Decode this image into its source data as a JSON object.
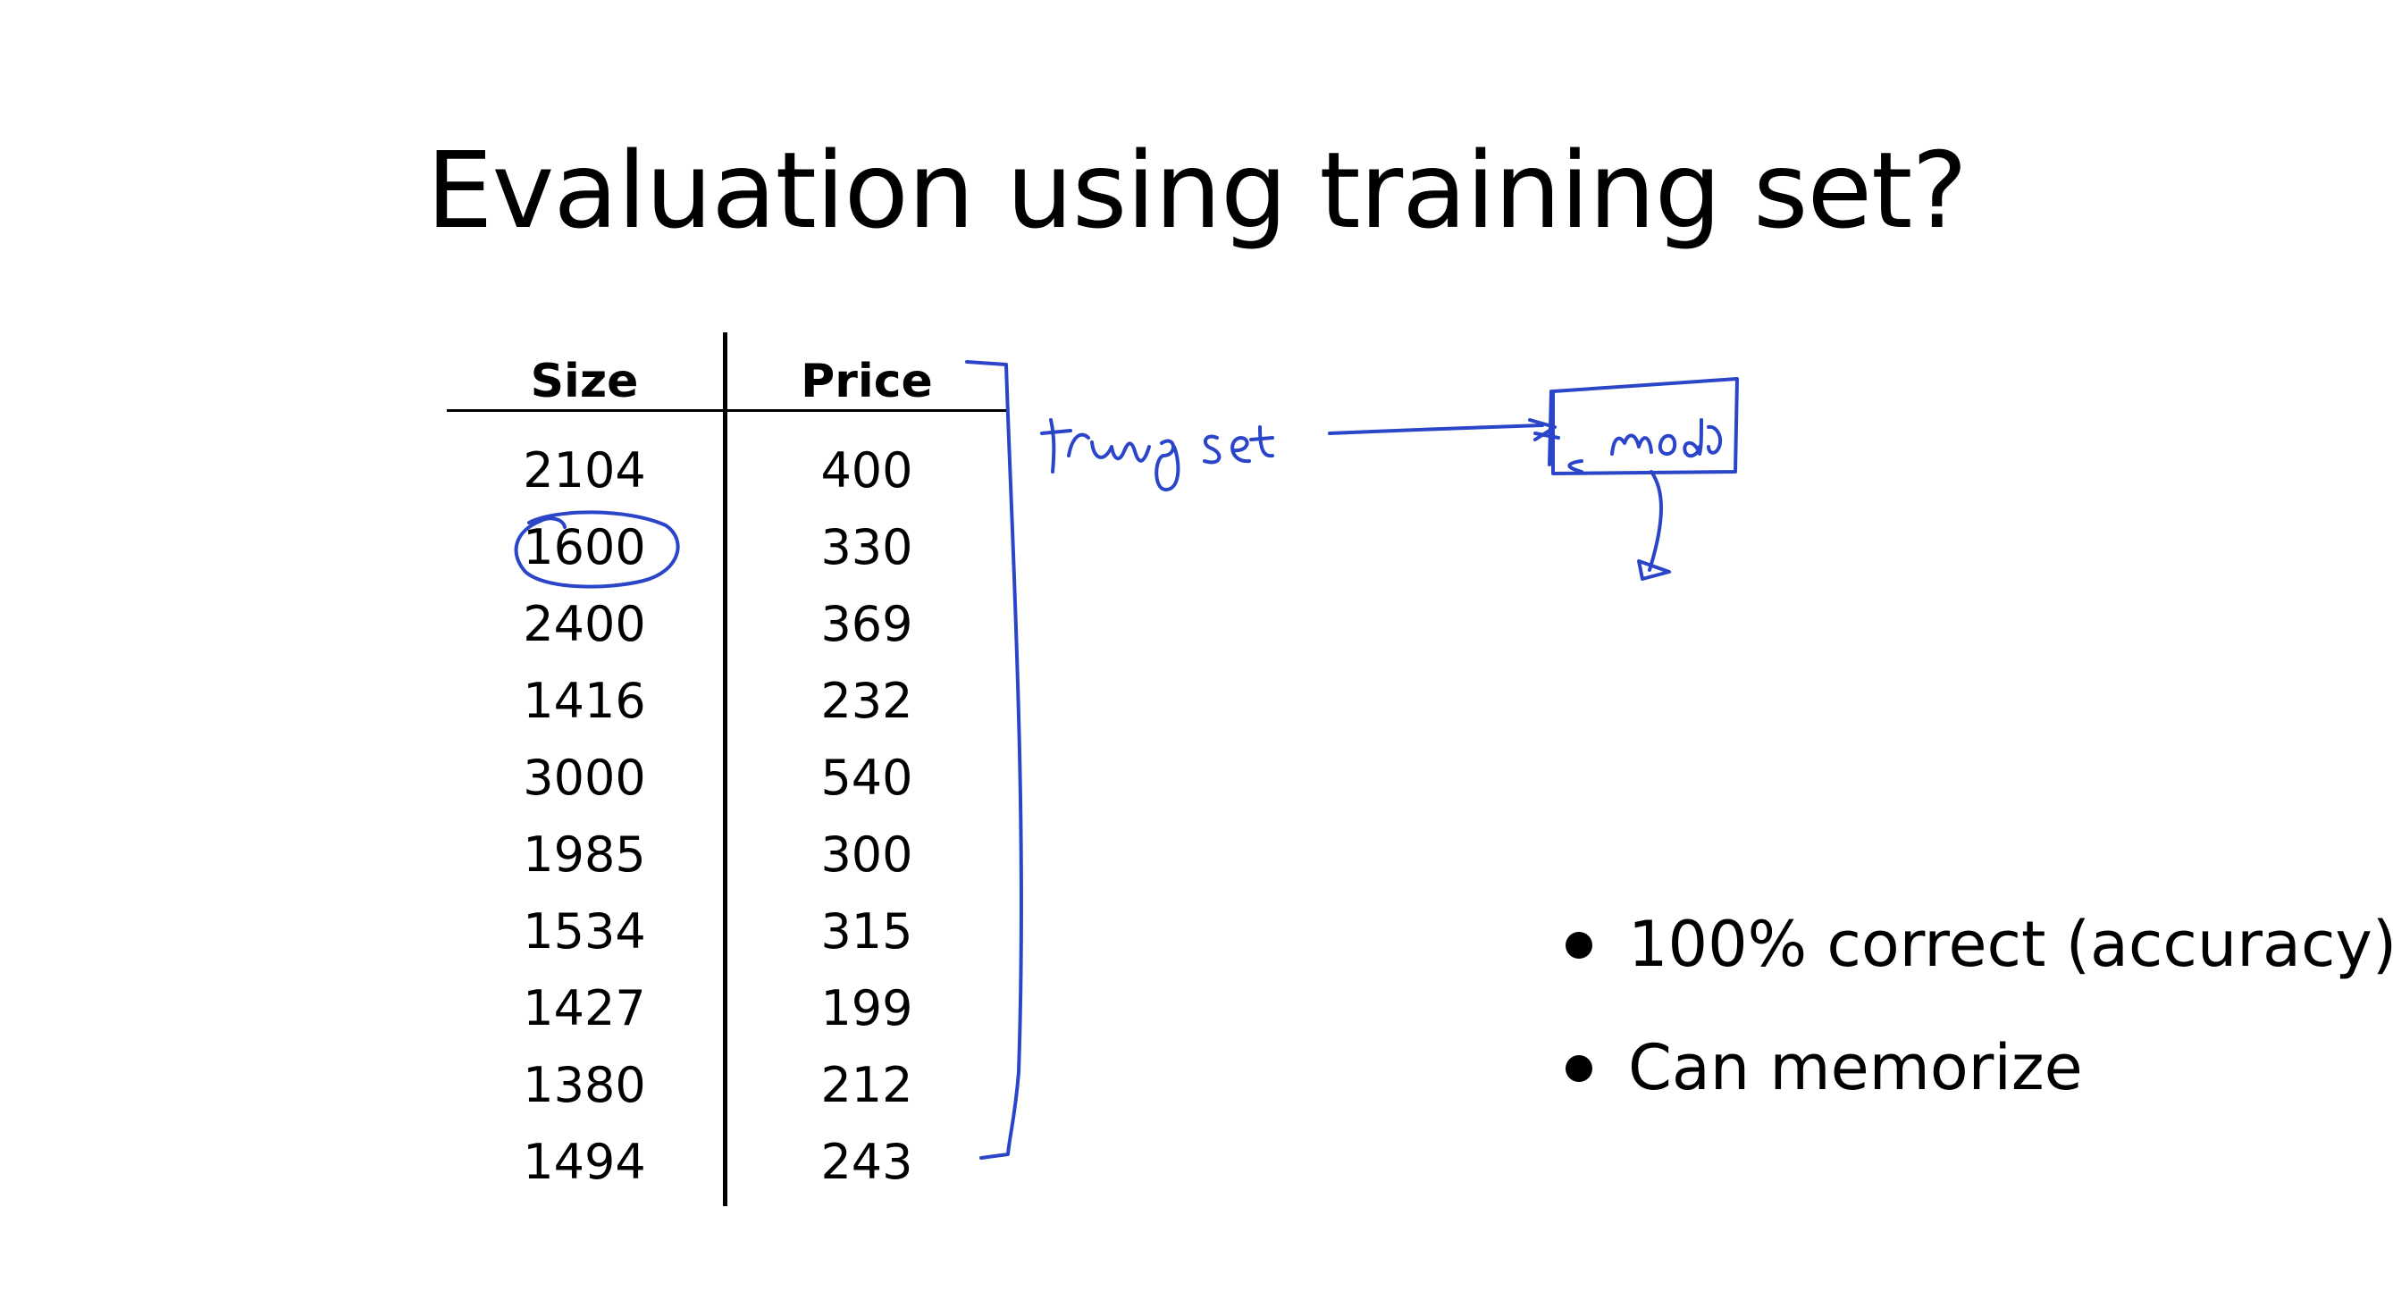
{
  "slide": {
    "title": "Evaluation using training set?",
    "table": {
      "headers": [
        "Size",
        "Price"
      ],
      "rows": [
        [
          "2104",
          "400"
        ],
        [
          "1600",
          "330"
        ],
        [
          "2400",
          "369"
        ],
        [
          "1416",
          "232"
        ],
        [
          "3000",
          "540"
        ],
        [
          "1985",
          "300"
        ],
        [
          "1534",
          "315"
        ],
        [
          "1427",
          "199"
        ],
        [
          "1380",
          "212"
        ],
        [
          "1494",
          "243"
        ]
      ]
    },
    "bullets": [
      "100% correct (accuracy)",
      "Can memorize"
    ],
    "annotations": {
      "ink_color": "#2b45c8",
      "note_left": "training set",
      "note_box": "model"
    }
  }
}
